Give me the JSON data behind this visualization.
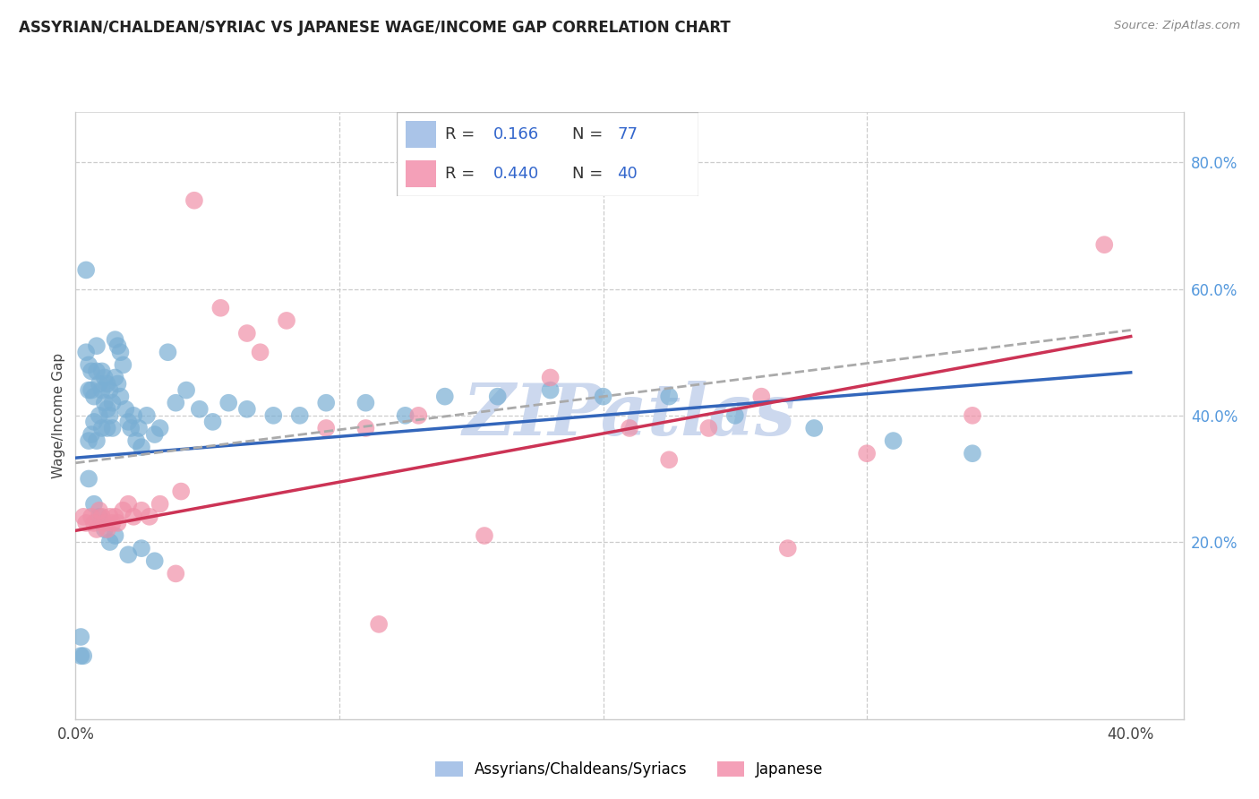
{
  "title": "ASSYRIAN/CHALDEAN/SYRIAC VS JAPANESE WAGE/INCOME GAP CORRELATION CHART",
  "source": "Source: ZipAtlas.com",
  "ylabel": "Wage/Income Gap",
  "xlim": [
    0.0,
    0.42
  ],
  "ylim": [
    -0.08,
    0.88
  ],
  "x_tick_positions": [
    0.0,
    0.1,
    0.2,
    0.3,
    0.4
  ],
  "x_tick_labels": [
    "0.0%",
    "",
    "",
    "",
    "40.0%"
  ],
  "y_tick_positions": [
    0.2,
    0.4,
    0.6,
    0.8
  ],
  "y_tick_labels": [
    "20.0%",
    "40.0%",
    "60.0%",
    "80.0%"
  ],
  "blue_color": "#7aafd4",
  "pink_color": "#f090a8",
  "blue_line_color": "#3366bb",
  "pink_line_color": "#cc3355",
  "dash_line_color": "#aaaaaa",
  "watermark": "ZIPatlas",
  "watermark_color": "#ccd8ee",
  "background_color": "#ffffff",
  "grid_color": "#cccccc",
  "blue_R": 0.166,
  "blue_N": 77,
  "pink_R": 0.44,
  "pink_N": 40,
  "blue_line_x": [
    0.0,
    0.4
  ],
  "blue_line_y": [
    0.333,
    0.468
  ],
  "pink_line_x": [
    0.0,
    0.4
  ],
  "pink_line_y": [
    0.218,
    0.525
  ],
  "dash_line_x": [
    0.0,
    0.4
  ],
  "dash_line_y": [
    0.325,
    0.535
  ],
  "blue_scatter_x": [
    0.002,
    0.002,
    0.003,
    0.004,
    0.004,
    0.005,
    0.005,
    0.005,
    0.006,
    0.006,
    0.006,
    0.007,
    0.007,
    0.008,
    0.008,
    0.008,
    0.009,
    0.009,
    0.01,
    0.01,
    0.01,
    0.011,
    0.011,
    0.012,
    0.012,
    0.012,
    0.013,
    0.013,
    0.014,
    0.014,
    0.015,
    0.015,
    0.016,
    0.016,
    0.017,
    0.017,
    0.018,
    0.019,
    0.02,
    0.021,
    0.022,
    0.023,
    0.024,
    0.025,
    0.027,
    0.03,
    0.032,
    0.035,
    0.038,
    0.042,
    0.047,
    0.052,
    0.058,
    0.065,
    0.075,
    0.085,
    0.095,
    0.11,
    0.125,
    0.14,
    0.16,
    0.18,
    0.2,
    0.225,
    0.25,
    0.28,
    0.31,
    0.34,
    0.005,
    0.007,
    0.009,
    0.011,
    0.013,
    0.015,
    0.02,
    0.025,
    0.03
  ],
  "blue_scatter_y": [
    0.02,
    0.05,
    0.02,
    0.63,
    0.5,
    0.48,
    0.44,
    0.36,
    0.47,
    0.44,
    0.37,
    0.43,
    0.39,
    0.51,
    0.47,
    0.36,
    0.45,
    0.4,
    0.47,
    0.44,
    0.38,
    0.46,
    0.42,
    0.45,
    0.41,
    0.38,
    0.44,
    0.4,
    0.42,
    0.38,
    0.52,
    0.46,
    0.51,
    0.45,
    0.5,
    0.43,
    0.48,
    0.41,
    0.39,
    0.38,
    0.4,
    0.36,
    0.38,
    0.35,
    0.4,
    0.37,
    0.38,
    0.5,
    0.42,
    0.44,
    0.41,
    0.39,
    0.42,
    0.41,
    0.4,
    0.4,
    0.42,
    0.42,
    0.4,
    0.43,
    0.43,
    0.44,
    0.43,
    0.43,
    0.4,
    0.38,
    0.36,
    0.34,
    0.3,
    0.26,
    0.24,
    0.22,
    0.2,
    0.21,
    0.18,
    0.19,
    0.17
  ],
  "pink_scatter_x": [
    0.003,
    0.004,
    0.006,
    0.007,
    0.008,
    0.009,
    0.01,
    0.011,
    0.012,
    0.013,
    0.014,
    0.015,
    0.016,
    0.018,
    0.02,
    0.022,
    0.025,
    0.028,
    0.032,
    0.038,
    0.045,
    0.055,
    0.065,
    0.08,
    0.095,
    0.11,
    0.13,
    0.155,
    0.18,
    0.21,
    0.24,
    0.27,
    0.3,
    0.34,
    0.39,
    0.115,
    0.225,
    0.26,
    0.04,
    0.07
  ],
  "pink_scatter_y": [
    0.24,
    0.23,
    0.24,
    0.23,
    0.22,
    0.25,
    0.24,
    0.23,
    0.22,
    0.24,
    0.23,
    0.24,
    0.23,
    0.25,
    0.26,
    0.24,
    0.25,
    0.24,
    0.26,
    0.15,
    0.74,
    0.57,
    0.53,
    0.55,
    0.38,
    0.38,
    0.4,
    0.21,
    0.46,
    0.38,
    0.38,
    0.19,
    0.34,
    0.4,
    0.67,
    0.07,
    0.33,
    0.43,
    0.28,
    0.5
  ]
}
